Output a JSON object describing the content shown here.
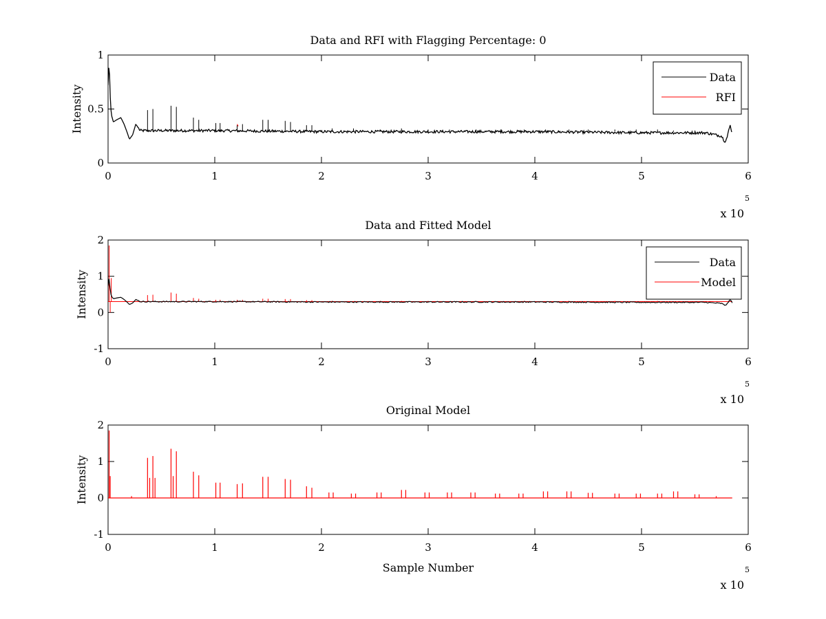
{
  "chart_data": [
    {
      "type": "line",
      "title": "Data and RFI with Flagging Percentage: 0",
      "xlabel": "",
      "ylabel": "Intensity",
      "xlim": [
        0,
        600000
      ],
      "ylim": [
        0,
        1
      ],
      "xticks": [
        "0",
        "1",
        "2",
        "3",
        "4",
        "5",
        "6"
      ],
      "yticks": [
        "0",
        "0.5",
        "1"
      ],
      "x_multiplier": {
        "base": "x 10",
        "exponent": "5"
      },
      "legend": {
        "placement": "top-right",
        "entries": [
          "Data",
          "RFI"
        ]
      },
      "colors": {
        "Data": "#000000",
        "RFI": "#ff0000"
      },
      "series": [
        {
          "name": "Data",
          "baseline": 0.29,
          "x": [
            0,
            1000,
            2000,
            3000,
            5000,
            8000,
            12000,
            15000,
            18000,
            20000,
            23000,
            26000,
            30000,
            60000,
            100000,
            200000,
            300000,
            400000,
            500000,
            560000,
            575000,
            578000,
            580000,
            583000,
            585000
          ],
          "values": [
            0.72,
            0.95,
            0.62,
            0.45,
            0.38,
            0.4,
            0.42,
            0.36,
            0.28,
            0.22,
            0.26,
            0.36,
            0.3,
            0.3,
            0.3,
            0.29,
            0.29,
            0.29,
            0.28,
            0.28,
            0.25,
            0.2,
            0.23,
            0.35,
            0.28
          ],
          "spikes": {
            "x": [
              37000,
              42000,
              59000,
              64000,
              80000,
              85000,
              101000,
              105000,
              121000,
              126000,
              145000,
              150000,
              166000,
              171000,
              186000,
              191000,
              210000,
              230000,
              255000,
              275000,
              300000,
              320000,
              345000,
              368000,
              390000,
              410000,
              432000,
              450000,
              475000,
              495000,
              515000,
              530000,
              550000
            ],
            "values": [
              0.49,
              0.5,
              0.53,
              0.52,
              0.42,
              0.4,
              0.37,
              0.37,
              0.35,
              0.36,
              0.4,
              0.4,
              0.39,
              0.38,
              0.35,
              0.35,
              0.32,
              0.32,
              0.31,
              0.32,
              0.31,
              0.31,
              0.31,
              0.31,
              0.31,
              0.31,
              0.31,
              0.31,
              0.31,
              0.31,
              0.31,
              0.3,
              0.3
            ]
          }
        },
        {
          "name": "RFI",
          "x": [
            121000,
            122000
          ],
          "values": [
            0.36,
            0.34
          ]
        }
      ]
    },
    {
      "type": "line",
      "title": "Data and Fitted Model",
      "xlabel": "",
      "ylabel": "Intensity",
      "xlim": [
        0,
        600000
      ],
      "ylim": [
        -1,
        2
      ],
      "xticks": [
        "0",
        "1",
        "2",
        "3",
        "4",
        "5",
        "6"
      ],
      "yticks": [
        "-1",
        "0",
        "1",
        "2"
      ],
      "x_multiplier": {
        "base": "x 10",
        "exponent": "5"
      },
      "legend": {
        "placement": "top-right",
        "entries": [
          "Data",
          "Model"
        ]
      },
      "colors": {
        "Data": "#000000",
        "Model": "#ff0000"
      },
      "series": [
        {
          "name": "Data",
          "x": [
            0,
            1000,
            2000,
            3000,
            5000,
            8000,
            12000,
            15000,
            18000,
            20000,
            23000,
            26000,
            30000,
            60000,
            100000,
            200000,
            300000,
            400000,
            500000,
            560000,
            575000,
            578000,
            580000,
            583000,
            585000
          ],
          "values": [
            0.72,
            0.95,
            0.62,
            0.45,
            0.38,
            0.4,
            0.42,
            0.36,
            0.28,
            0.22,
            0.26,
            0.36,
            0.3,
            0.3,
            0.3,
            0.29,
            0.29,
            0.29,
            0.28,
            0.28,
            0.25,
            0.2,
            0.23,
            0.35,
            0.28
          ]
        },
        {
          "name": "Model",
          "baseline": 0.3,
          "spikes": {
            "x": [
              1000,
              2000,
              3000,
              37000,
              42000,
              59000,
              64000,
              80000,
              85000,
              101000,
              105000,
              121000,
              126000,
              145000,
              150000,
              166000,
              171000,
              186000,
              191000,
              210000,
              255000,
              275000,
              300000,
              345000,
              390000,
              432000,
              475000,
              515000,
              550000
            ],
            "values": [
              1.85,
              0.0,
              0.95,
              0.48,
              0.49,
              0.55,
              0.52,
              0.4,
              0.38,
              0.35,
              0.35,
              0.35,
              0.35,
              0.38,
              0.38,
              0.37,
              0.37,
              0.34,
              0.34,
              0.32,
              0.32,
              0.32,
              0.32,
              0.32,
              0.32,
              0.32,
              0.32,
              0.32,
              0.31
            ]
          }
        }
      ]
    },
    {
      "type": "line",
      "title": "Original Model",
      "xlabel": "Sample Number",
      "ylabel": "Intensity",
      "xlim": [
        0,
        600000
      ],
      "ylim": [
        -1,
        2
      ],
      "xticks": [
        "0",
        "1",
        "2",
        "3",
        "4",
        "5",
        "6"
      ],
      "yticks": [
        "-1",
        "0",
        "1",
        "2"
      ],
      "x_multiplier": {
        "base": "x 10",
        "exponent": "5"
      },
      "colors": {
        "Model": "#ff0000"
      },
      "series": [
        {
          "baseline": 0.0,
          "x_end": 585000,
          "spikes": {
            "x": [
              1000,
              2000,
              22000,
              37000,
              39000,
              42000,
              44000,
              59000,
              61000,
              64000,
              80000,
              85000,
              101000,
              105000,
              121000,
              126000,
              145000,
              150000,
              166000,
              171000,
              186000,
              191000,
              207000,
              211000,
              228000,
              232000,
              252000,
              256000,
              275000,
              279000,
              297000,
              301000,
              318000,
              322000,
              340000,
              344000,
              363000,
              367000,
              385000,
              389000,
              408000,
              412000,
              430000,
              434000,
              450000,
              454000,
              475000,
              479000,
              495000,
              499000,
              515000,
              519000,
              530000,
              534000,
              550000,
              554000,
              570000
            ],
            "values": [
              1.85,
              0.6,
              0.05,
              1.1,
              0.55,
              1.15,
              0.55,
              1.35,
              0.6,
              1.28,
              0.72,
              0.62,
              0.42,
              0.42,
              0.38,
              0.4,
              0.58,
              0.58,
              0.52,
              0.5,
              0.32,
              0.28,
              0.15,
              0.15,
              0.12,
              0.12,
              0.15,
              0.15,
              0.22,
              0.22,
              0.15,
              0.15,
              0.15,
              0.15,
              0.15,
              0.15,
              0.12,
              0.12,
              0.12,
              0.12,
              0.18,
              0.18,
              0.18,
              0.18,
              0.14,
              0.14,
              0.12,
              0.12,
              0.12,
              0.12,
              0.12,
              0.12,
              0.18,
              0.18,
              0.1,
              0.1,
              0.05
            ]
          }
        }
      ]
    }
  ]
}
